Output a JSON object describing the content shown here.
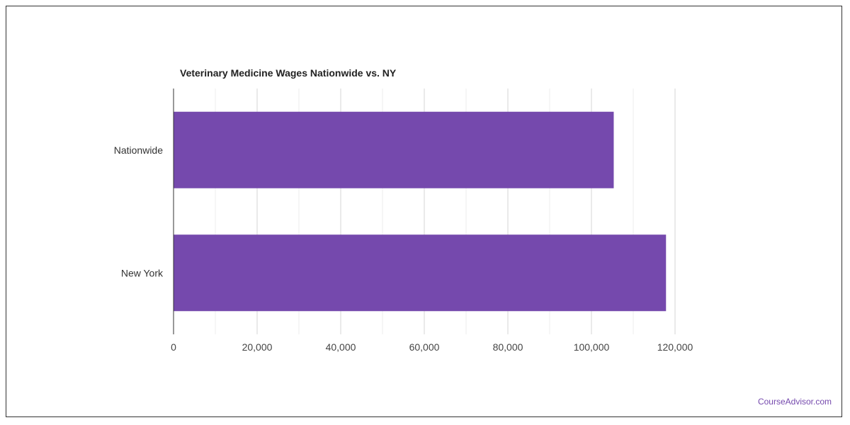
{
  "chart_data": {
    "type": "bar",
    "orientation": "horizontal",
    "title": "Veterinary Medicine Wages Nationwide vs. NY",
    "categories": [
      "Nationwide",
      "New York"
    ],
    "values": [
      105330,
      117840
    ],
    "xlim": [
      0,
      120000
    ],
    "x_ticks": [
      0,
      20000,
      40000,
      60000,
      80000,
      100000,
      120000
    ],
    "x_tick_labels": [
      "0",
      "20,000",
      "40,000",
      "60,000",
      "80,000",
      "100,000",
      "120,000"
    ],
    "xlabel": "",
    "ylabel": "",
    "grid": true,
    "bar_color": "#7549ad"
  },
  "watermark": "CourseAdvisor.com"
}
